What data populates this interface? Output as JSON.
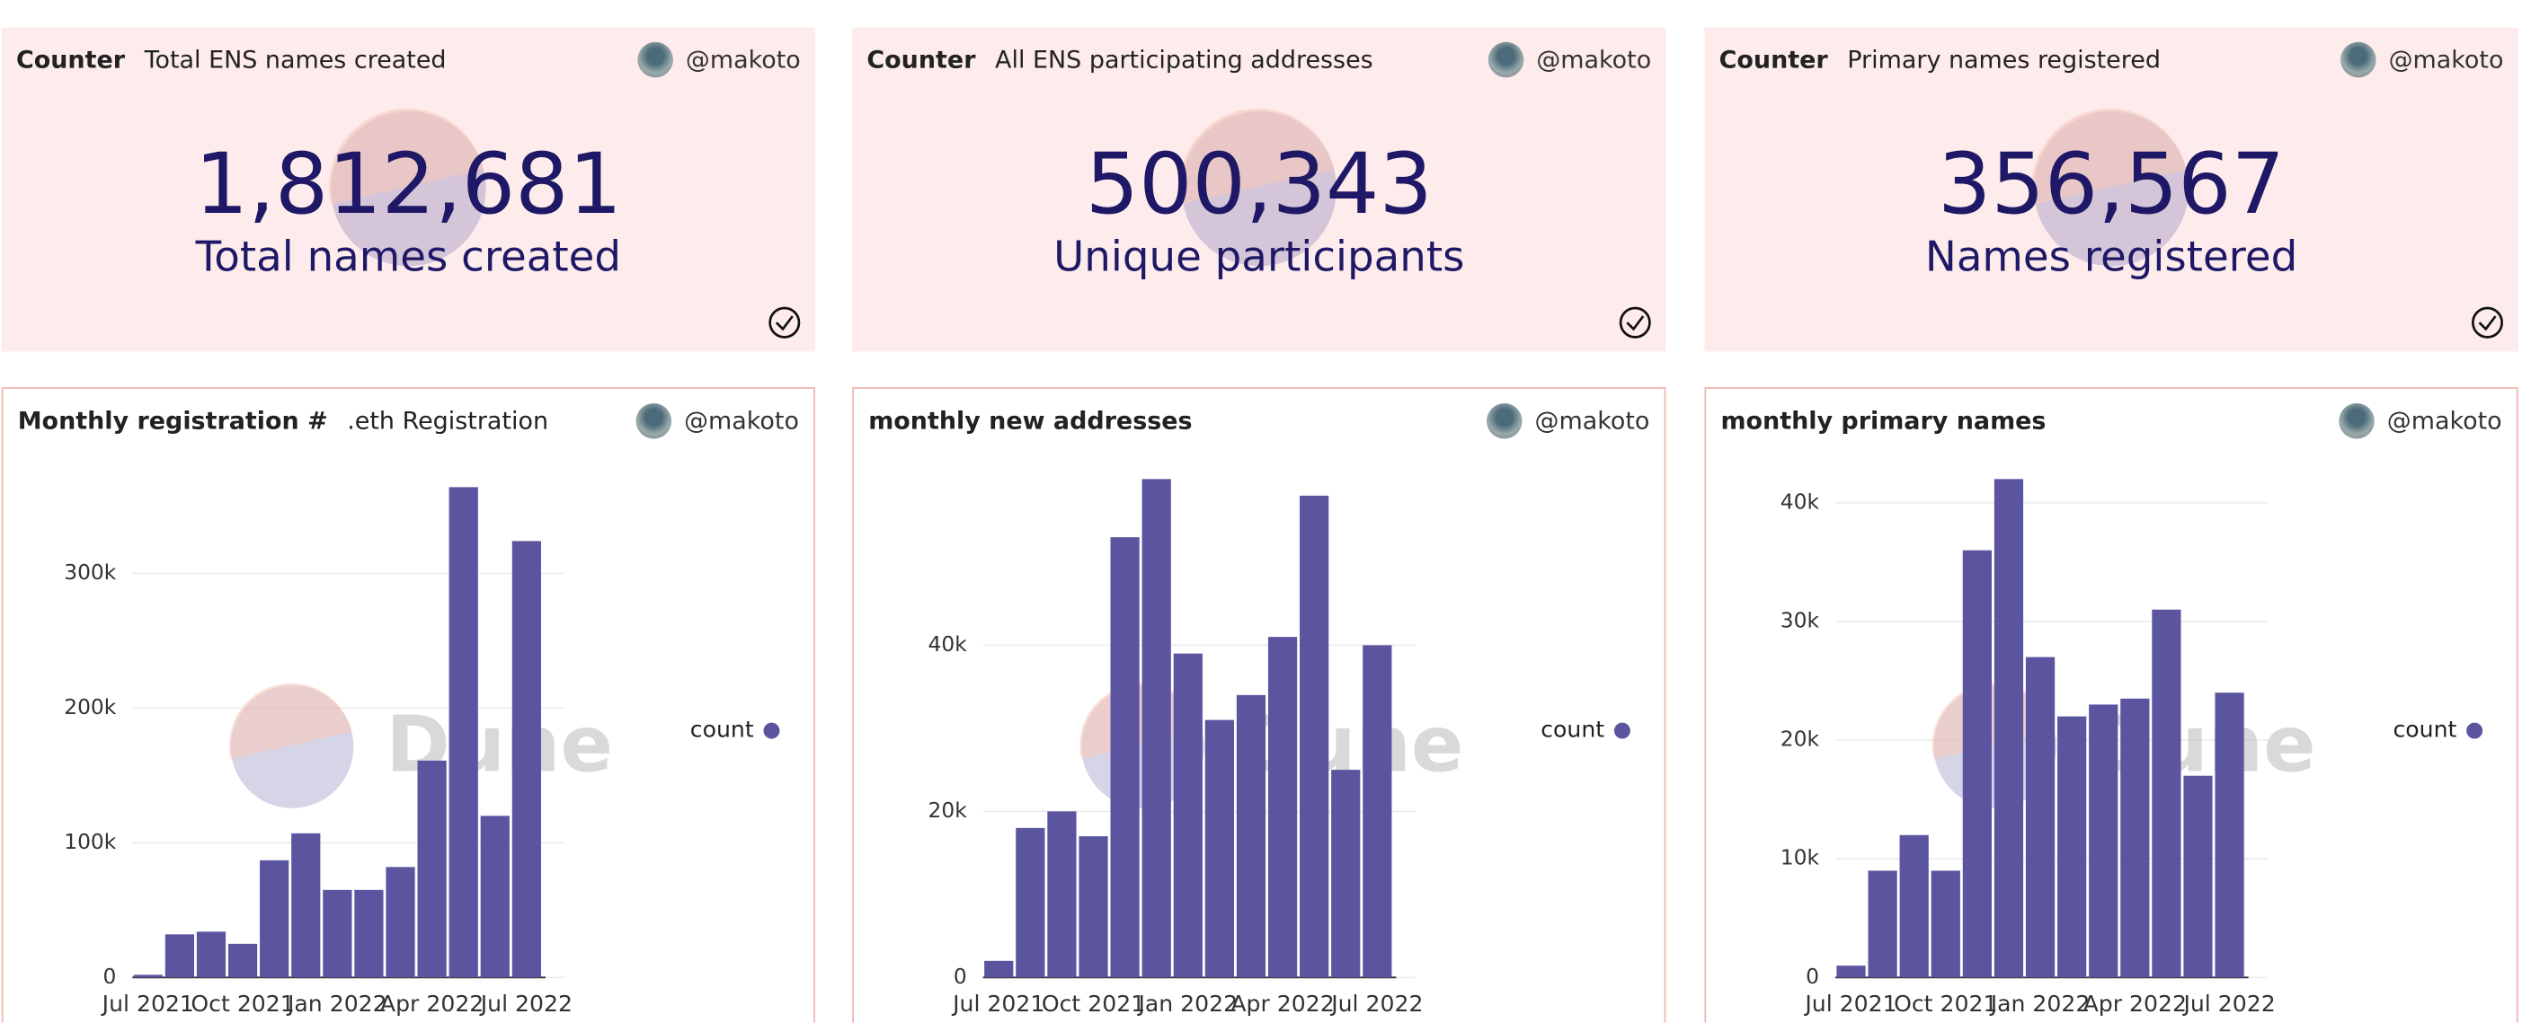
{
  "counters": [
    {
      "label": "Counter",
      "title": "Total ENS names created",
      "user": "@makoto",
      "value": "1,812,681",
      "caption": "Total names created"
    },
    {
      "label": "Counter",
      "title": "All ENS participating addresses",
      "user": "@makoto",
      "value": "500,343",
      "caption": "Unique participants"
    },
    {
      "label": "Counter",
      "title": "Primary names registered",
      "user": "@makoto",
      "value": "356,567",
      "caption": "Names registered"
    }
  ],
  "chart_data": [
    {
      "type": "bar",
      "title": "Monthly registration #",
      "subtitle": ".eth Registration",
      "user": "@makoto",
      "watermark": "Dune",
      "categories": [
        "Jul 2021",
        null,
        null,
        "Oct 2021",
        null,
        null,
        "Jan 2022",
        null,
        null,
        "Apr 2022",
        null,
        null,
        "Jul 2022"
      ],
      "series": [
        {
          "name": "count",
          "color": "#5b55a0",
          "values": [
            2000,
            32000,
            34000,
            25000,
            87000,
            107000,
            65000,
            65000,
            82000,
            161000,
            364000,
            120000,
            324000
          ]
        }
      ],
      "ylim": [
        0,
        370000
      ],
      "yticks": [
        0,
        {
          "value": 100000,
          "label": "100k"
        },
        {
          "value": 200000,
          "label": "200k"
        },
        {
          "value": 300000,
          "label": "300k"
        }
      ],
      "grid": true,
      "legend": "right"
    },
    {
      "type": "bar",
      "title": "monthly new addresses",
      "user": "@makoto",
      "watermark": "Dune",
      "categories": [
        "Jul 2021",
        null,
        null,
        "Oct 2021",
        null,
        null,
        "Jan 2022",
        null,
        null,
        "Apr 2022",
        null,
        null,
        "Jul 2022"
      ],
      "series": [
        {
          "name": "count",
          "color": "#5b55a0",
          "values": [
            2000,
            18000,
            20000,
            17000,
            53000,
            60000,
            39000,
            31000,
            34000,
            41000,
            58000,
            25000,
            40000
          ]
        }
      ],
      "ylim": [
        0,
        60000
      ],
      "yticks": [
        0,
        {
          "value": 20000,
          "label": "20k"
        },
        {
          "value": 40000,
          "label": "40k"
        }
      ],
      "grid": true,
      "legend": "right"
    },
    {
      "type": "bar",
      "title": "monthly primary names",
      "user": "@makoto",
      "watermark": "Dune",
      "categories": [
        "Jul 2021",
        null,
        null,
        "Oct 2021",
        null,
        null,
        "Jan 2022",
        null,
        null,
        "Apr 2022",
        null,
        null,
        "Jul 2022"
      ],
      "series": [
        {
          "name": "count",
          "color": "#5b55a0",
          "values": [
            1000,
            9000,
            12000,
            9000,
            36000,
            42000,
            27000,
            22000,
            23000,
            23500,
            31000,
            17000,
            24000
          ]
        }
      ],
      "ylim": [
        0,
        42000
      ],
      "yticks": [
        0,
        {
          "value": 10000,
          "label": "10k"
        },
        {
          "value": 20000,
          "label": "20k"
        },
        {
          "value": 30000,
          "label": "30k"
        },
        {
          "value": 40000,
          "label": "40k"
        }
      ],
      "grid": true,
      "legend": "right"
    }
  ]
}
